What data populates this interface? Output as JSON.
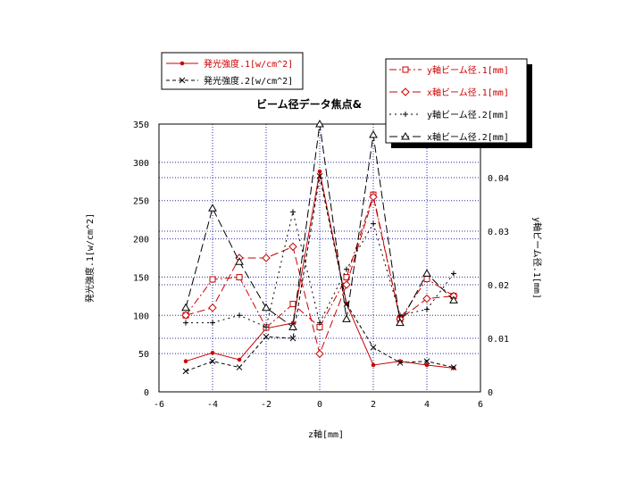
{
  "chart_data": {
    "type": "line",
    "title": "ビーム径データ焦点&",
    "xlabel": "z軸[mm]",
    "ylabel": "発光強度.1[w/cm^2]",
    "y2label": "y軸ビーム径.1[mm]",
    "xlim": [
      -6,
      6
    ],
    "ylim": [
      0,
      350
    ],
    "y2lim": [
      0,
      0.05
    ],
    "xticks": [
      "-6",
      "-4",
      "-2",
      "0",
      "2",
      "4",
      "6"
    ],
    "yticks": [
      "0",
      "50",
      "100",
      "150",
      "200",
      "250",
      "300",
      "350"
    ],
    "y2ticks": [
      "0",
      "0.01",
      "0.02",
      "0.03",
      "0.04"
    ],
    "grid": true,
    "series": [
      {
        "name": "発光強度.1[w/cm^2]",
        "axis": "left",
        "color": "#cc0000",
        "style": "solid",
        "marker": "dot",
        "x": [
          -5,
          -4,
          -3,
          -2,
          -1,
          0,
          1,
          2,
          3,
          4,
          5
        ],
        "y": [
          40,
          51,
          42,
          83,
          90,
          288,
          115,
          35,
          40,
          35,
          31
        ]
      },
      {
        "name": "発光強度.2[w/cm^2]",
        "axis": "left",
        "color": "#000000",
        "style": "dashed",
        "marker": "x",
        "x": [
          -5,
          -4,
          -3,
          -2,
          -1,
          0,
          1,
          2,
          3,
          4,
          5
        ],
        "y": [
          27,
          40,
          32,
          72,
          70,
          282,
          115,
          58,
          38,
          40,
          32
        ]
      },
      {
        "name": "y軸ビーム径.1[mm]",
        "axis": "right",
        "color": "#cc0000",
        "style": "dashdot",
        "marker": "square",
        "x": [
          -5,
          -4,
          -3,
          -2,
          -1,
          0,
          1,
          2,
          3,
          4,
          5
        ],
        "y": [
          0.0143,
          0.021,
          0.0214,
          0.012,
          0.0164,
          0.0121,
          0.0214,
          0.0368,
          0.0136,
          0.0211,
          0.0179
        ]
      },
      {
        "name": "x軸ビーム径.1[mm]",
        "axis": "right",
        "color": "#cc0000",
        "style": "longdash",
        "marker": "diamond",
        "x": [
          -5,
          -4,
          -3,
          -2,
          -1,
          0,
          1,
          2,
          3,
          4,
          5
        ],
        "y": [
          0.0143,
          0.0157,
          0.025,
          0.025,
          0.0271,
          0.0071,
          0.02,
          0.0364,
          0.0136,
          0.0174,
          0.0179
        ]
      },
      {
        "name": "y軸ビーム径.2[mm]",
        "axis": "right",
        "color": "#000000",
        "style": "dotted",
        "marker": "plus",
        "x": [
          -5,
          -4,
          -3,
          -2,
          -1,
          0,
          1,
          2,
          3,
          4,
          5
        ],
        "y": [
          0.0129,
          0.0129,
          0.0143,
          0.0121,
          0.0336,
          0.0129,
          0.0229,
          0.0314,
          0.0143,
          0.0154,
          0.0221
        ]
      },
      {
        "name": "x軸ビーム径.2[mm]",
        "axis": "right",
        "color": "#000000",
        "style": "longdash",
        "marker": "triangle",
        "x": [
          -5,
          -4,
          -3,
          -2,
          -1,
          0,
          1,
          2,
          3,
          4,
          5
        ],
        "y": [
          0.0157,
          0.0343,
          0.0243,
          0.0157,
          0.0121,
          0.05,
          0.0136,
          0.048,
          0.0129,
          0.0221,
          0.0171
        ]
      }
    ]
  }
}
